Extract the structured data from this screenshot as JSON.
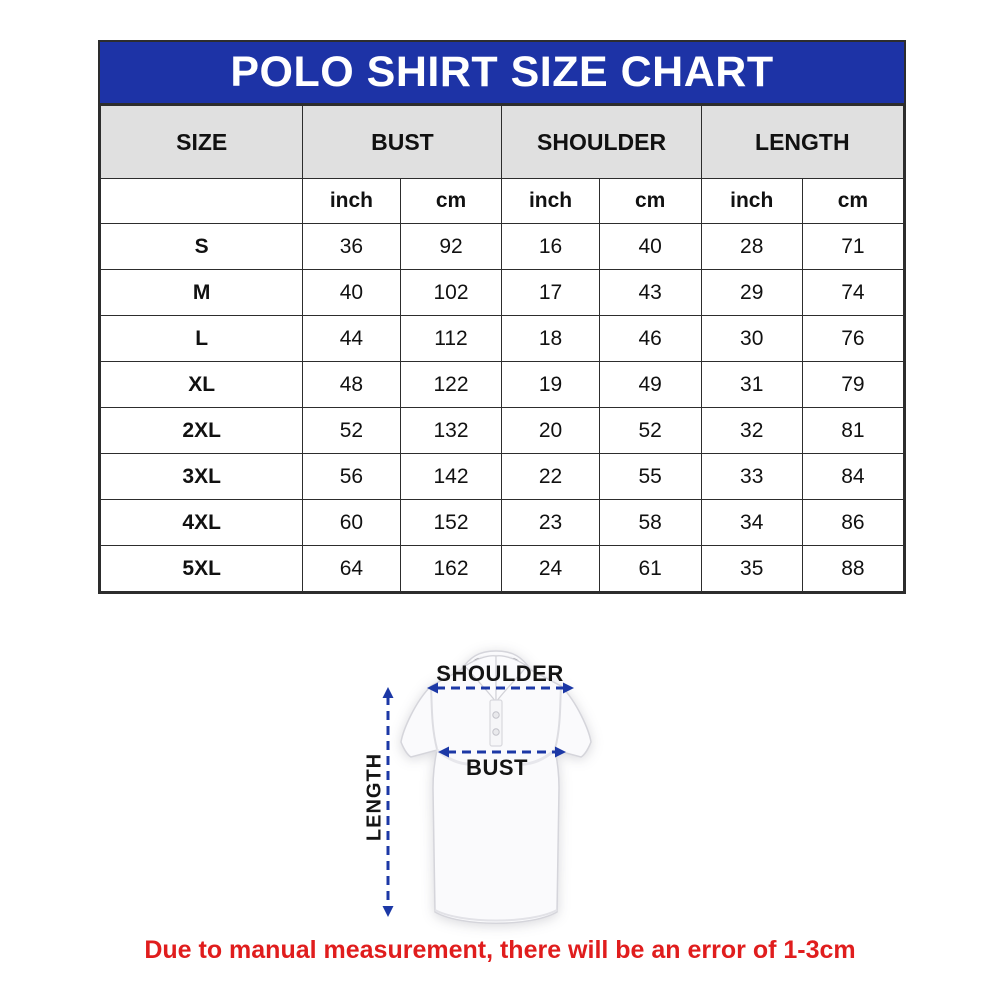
{
  "title": "POLO SHIRT SIZE CHART",
  "table": {
    "columns": [
      "SIZE",
      "BUST",
      "SHOULDER",
      "LENGTH"
    ],
    "units": [
      "inch",
      "cm",
      "inch",
      "cm",
      "inch",
      "cm"
    ],
    "rows": [
      {
        "size": "S",
        "values": [
          "36",
          "92",
          "16",
          "40",
          "28",
          "71"
        ]
      },
      {
        "size": "M",
        "values": [
          "40",
          "102",
          "17",
          "43",
          "29",
          "74"
        ]
      },
      {
        "size": "L",
        "values": [
          "44",
          "112",
          "18",
          "46",
          "30",
          "76"
        ]
      },
      {
        "size": "XL",
        "values": [
          "48",
          "122",
          "19",
          "49",
          "31",
          "79"
        ]
      },
      {
        "size": "2XL",
        "values": [
          "52",
          "132",
          "20",
          "52",
          "32",
          "81"
        ]
      },
      {
        "size": "3XL",
        "values": [
          "56",
          "142",
          "22",
          "55",
          "33",
          "84"
        ]
      },
      {
        "size": "4XL",
        "values": [
          "60",
          "152",
          "23",
          "58",
          "34",
          "86"
        ]
      },
      {
        "size": "5XL",
        "values": [
          "64",
          "162",
          "24",
          "61",
          "35",
          "88"
        ]
      }
    ]
  },
  "diagram": {
    "shoulder_label": "SHOULDER",
    "bust_label": "BUST",
    "length_label": "LENGTH"
  },
  "note": "Due to manual measurement, there will be an error of 1-3cm",
  "colors": {
    "title_bg": "#1d33a6",
    "header_bg": "#e0e0e0",
    "border": "#2d2d2d",
    "note_red": "#e01d1d",
    "arrow_blue": "#1c38a6"
  },
  "chart_data": {
    "type": "table",
    "title": "POLO SHIRT SIZE CHART",
    "columns": [
      "SIZE",
      "BUST inch",
      "BUST cm",
      "SHOULDER inch",
      "SHOULDER cm",
      "LENGTH inch",
      "LENGTH cm"
    ],
    "rows": [
      [
        "S",
        36,
        92,
        16,
        40,
        28,
        71
      ],
      [
        "M",
        40,
        102,
        17,
        43,
        29,
        74
      ],
      [
        "L",
        44,
        112,
        18,
        46,
        30,
        76
      ],
      [
        "XL",
        48,
        122,
        19,
        49,
        31,
        79
      ],
      [
        "2XL",
        52,
        132,
        20,
        52,
        32,
        81
      ],
      [
        "3XL",
        56,
        142,
        22,
        55,
        33,
        84
      ],
      [
        "4XL",
        60,
        152,
        23,
        58,
        34,
        86
      ],
      [
        "5XL",
        64,
        162,
        24,
        61,
        35,
        88
      ]
    ]
  }
}
